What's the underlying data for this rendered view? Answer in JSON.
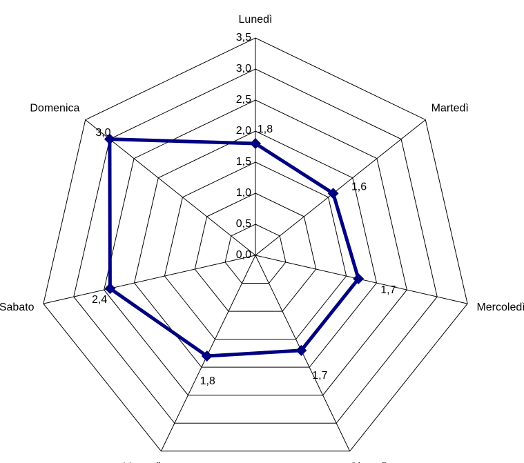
{
  "chart_data": {
    "type": "radar",
    "categories": [
      "Lunedì",
      "Martedì",
      "Mercoledì",
      "Giovedì",
      "Venerdì",
      "Sabato",
      "Domenica"
    ],
    "series": [
      {
        "color": "#000080",
        "values": [
          1.8,
          1.6,
          1.7,
          1.7,
          1.8,
          2.4,
          3.0
        ],
        "value_labels": [
          "1,8",
          "1,6",
          "1,7",
          "1,7",
          "1,8",
          "2,4",
          "3,0"
        ]
      }
    ],
    "ylim": [
      0,
      3.5
    ],
    "yticks": [
      {
        "value": 0,
        "label": "0,0"
      },
      {
        "value": 0.5,
        "label": "0,5"
      },
      {
        "value": 1,
        "label": "1,0"
      },
      {
        "value": 1.5,
        "label": "1,5"
      },
      {
        "value": 2,
        "label": "2,0"
      },
      {
        "value": 2.5,
        "label": "2,5"
      },
      {
        "value": 3,
        "label": "3,0"
      },
      {
        "value": 3.5,
        "label": "3,5"
      }
    ],
    "grid": true
  }
}
